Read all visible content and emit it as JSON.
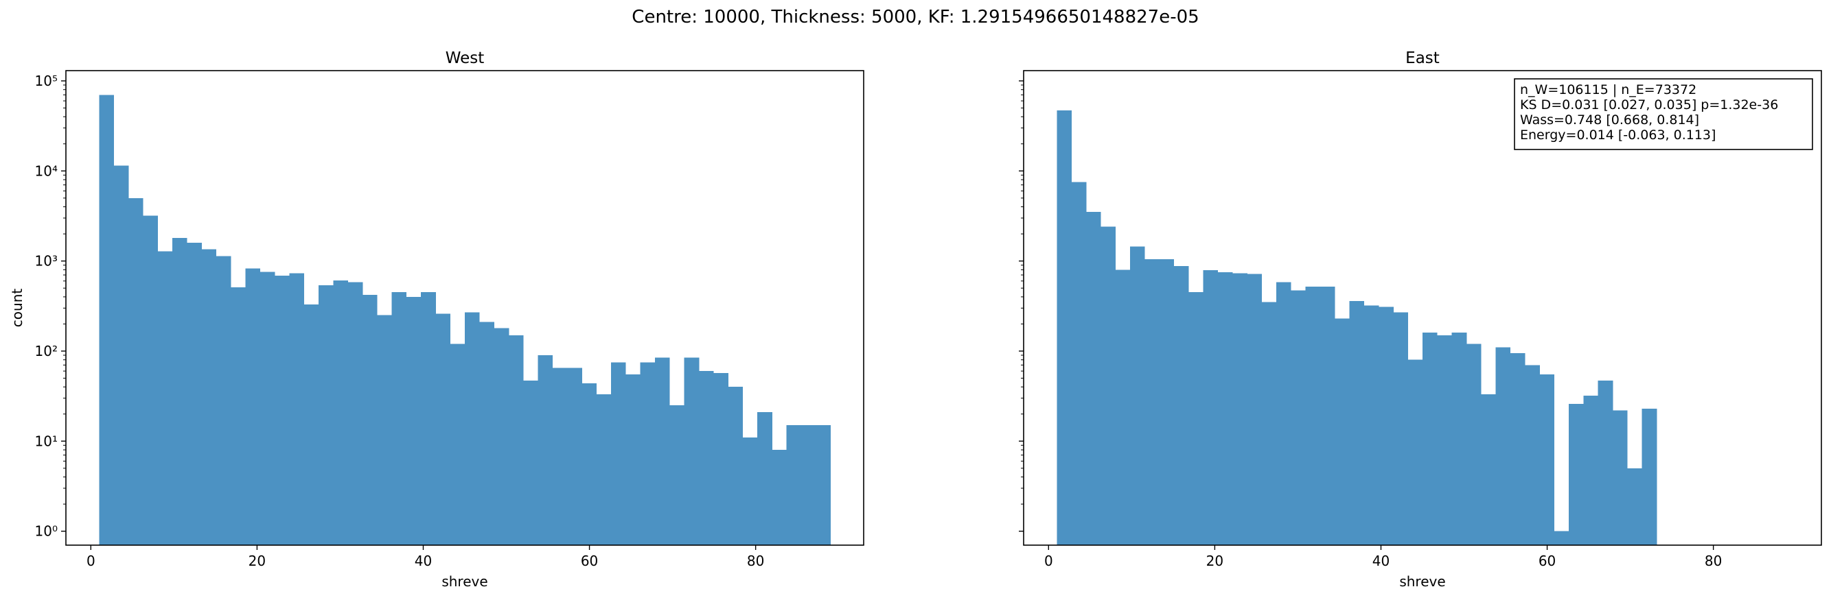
{
  "suptitle": "Centre: 10000, Thickness: 5000, KF: 1.2915496650148827e-05",
  "chart_data": [
    {
      "type": "bar",
      "title": "West",
      "xlabel": "shreve",
      "ylabel": "count",
      "yscale": "log",
      "xlim": [
        -3,
        93
      ],
      "ylim": [
        0.7,
        130000
      ],
      "xticks": [
        0,
        20,
        40,
        60,
        80
      ],
      "yticks": [
        {
          "value": 1,
          "label": "10⁰"
        },
        {
          "value": 10,
          "label": "10¹"
        },
        {
          "value": 100,
          "label": "10²"
        },
        {
          "value": 1000,
          "label": "10³"
        },
        {
          "value": 10000,
          "label": "10⁴"
        },
        {
          "value": 100000,
          "label": "10⁵"
        }
      ],
      "bin_start": 1,
      "bin_width": 1.76,
      "values": [
        70000,
        11500,
        5000,
        3200,
        1280,
        1800,
        1600,
        1350,
        1130,
        510,
        830,
        760,
        690,
        730,
        330,
        540,
        610,
        580,
        420,
        250,
        450,
        400,
        450,
        260,
        120,
        270,
        210,
        180,
        150,
        47,
        90,
        65,
        65,
        44,
        33,
        75,
        55,
        75,
        85,
        25,
        85,
        60,
        57,
        40,
        11,
        21,
        8,
        15,
        15,
        15
      ],
      "grid": false,
      "color": "#4c92c3"
    },
    {
      "type": "bar",
      "title": "East",
      "xlabel": "shreve",
      "yscale": "log",
      "xlim": [
        -3,
        93
      ],
      "ylim": [
        0.7,
        130000
      ],
      "xticks": [
        0,
        20,
        40,
        60,
        80
      ],
      "bin_start": 1,
      "bin_width": 1.76,
      "values": [
        47000,
        7500,
        3500,
        2400,
        800,
        1450,
        1050,
        1050,
        880,
        450,
        790,
        750,
        730,
        720,
        350,
        580,
        470,
        520,
        520,
        230,
        360,
        320,
        310,
        270,
        80,
        160,
        150,
        160,
        120,
        33,
        110,
        95,
        70,
        55,
        1,
        26,
        32,
        47,
        22,
        5,
        23
      ],
      "grid": false,
      "color": "#4c92c3",
      "annotation": [
        "n_W=106115 | n_E=73372",
        "KS D=0.031 [0.027, 0.035]  p=1.32e-36",
        "Wass=0.748 [0.668, 0.814]",
        "Energy=0.014 [-0.063, 0.113]"
      ],
      "legend_placement": "top-right"
    }
  ]
}
